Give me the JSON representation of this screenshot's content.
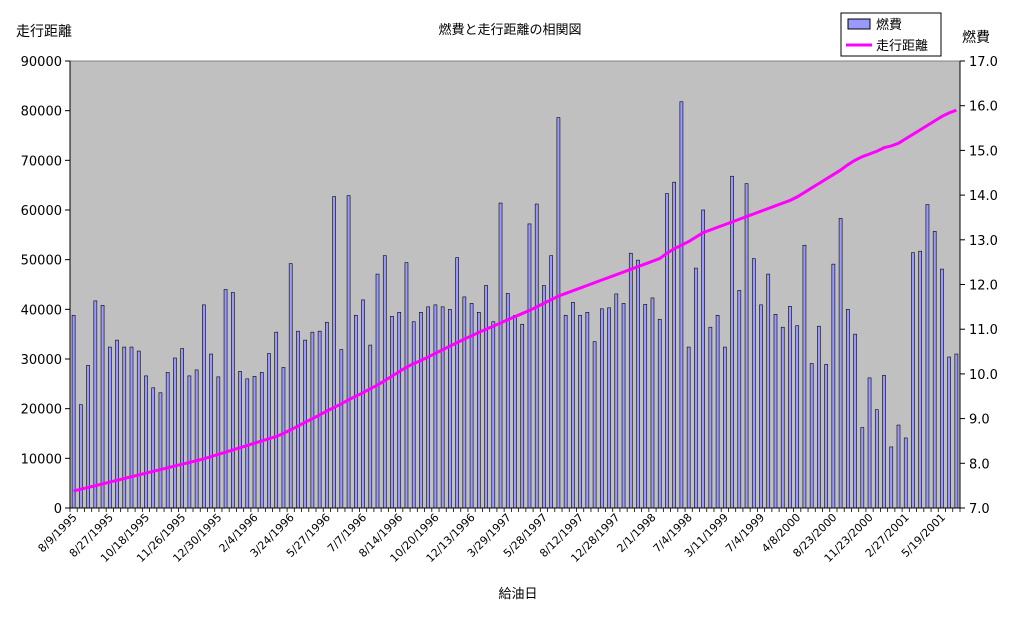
{
  "chart_data": {
    "type": "bar",
    "title": "燃費と走行距離の相関図",
    "xlabel": "給油日",
    "ylabel": "走行距離",
    "y2label": "燃費",
    "ylim": [
      0,
      90000
    ],
    "y2lim": [
      7.0,
      17.0
    ],
    "yticks": [
      "0",
      "10000",
      "20000",
      "30000",
      "40000",
      "50000",
      "60000",
      "70000",
      "80000",
      "90000"
    ],
    "y2ticks": [
      "7.0",
      "8.0",
      "9.0",
      "10.0",
      "11.0",
      "12.0",
      "13.0",
      "14.0",
      "15.0",
      "16.0",
      "17.0"
    ],
    "xtick_labels": [
      "8/9/1995",
      "8/27/1995",
      "10/18/1995",
      "11/26/1995",
      "12/30/1995",
      "2/4/1996",
      "3/24/1996",
      "5/27/1996",
      "7/7/1996",
      "8/14/1996",
      "10/20/1996",
      "12/13/1996",
      "3/29/1997",
      "5/28/1997",
      "8/12/1997",
      "12/28/1997",
      "2/1/1998",
      "7/4/1998",
      "3/11/1999",
      "7/4/1999",
      "4/8/2000",
      "8/23/2000",
      "11/23/2000",
      "2/27/2001",
      "5/19/2001"
    ],
    "grid": false,
    "plot_background": "#c0c0c0",
    "legend_position": "top-right",
    "series": [
      {
        "name": "燃費",
        "kind": "bar",
        "axis": "left",
        "color": "#9999ff",
        "values": [
          38800,
          20800,
          28700,
          41700,
          40800,
          32400,
          33800,
          32400,
          32400,
          31600,
          26600,
          24200,
          23200,
          27300,
          30200,
          32100,
          26600,
          27800,
          40900,
          31000,
          26400,
          44000,
          43400,
          27500,
          26000,
          26500,
          27300,
          31100,
          35400,
          28300,
          49200,
          35600,
          33800,
          35400,
          35600,
          37400,
          62700,
          31900,
          62900,
          38800,
          41900,
          32800,
          47100,
          50800,
          38600,
          39400,
          49400,
          37500,
          39400,
          40500,
          40900,
          40500,
          40000,
          50400,
          42500,
          41200,
          39400,
          44800,
          37500,
          61400,
          43200,
          38800,
          37000,
          57200,
          61200,
          44800,
          50800,
          78600,
          38800,
          41400,
          38800,
          39400,
          33500,
          40100,
          40300,
          43100,
          41200,
          51300,
          49900,
          41000,
          42300,
          38000,
          63300,
          65600,
          81800,
          32400,
          48300,
          60000,
          36400,
          38800,
          32400,
          66800,
          43800,
          65300,
          50200,
          40900,
          47100,
          39000,
          36400,
          40600,
          36700,
          52900,
          29100,
          36600,
          28900,
          49100,
          58300,
          40000,
          35000,
          16200,
          26200,
          19800,
          26700,
          12300,
          16700,
          14100,
          51400,
          51700,
          61100,
          55700,
          48100,
          30400,
          31000
        ]
      },
      {
        "name": "走行距離",
        "kind": "line",
        "axis": "right",
        "color": "#ff00ff",
        "values": [
          7.38,
          7.42,
          7.46,
          7.5,
          7.54,
          7.58,
          7.62,
          7.66,
          7.7,
          7.74,
          7.78,
          7.82,
          7.86,
          7.9,
          7.94,
          7.98,
          8.02,
          8.06,
          8.1,
          8.15,
          8.2,
          8.25,
          8.3,
          8.35,
          8.4,
          8.45,
          8.5,
          8.55,
          8.6,
          8.67,
          8.75,
          8.83,
          8.92,
          9.0,
          9.08,
          9.17,
          9.25,
          9.33,
          9.42,
          9.5,
          9.58,
          9.67,
          9.75,
          9.85,
          9.95,
          10.05,
          10.15,
          10.23,
          10.3,
          10.38,
          10.46,
          10.54,
          10.62,
          10.7,
          10.78,
          10.85,
          10.93,
          11.0,
          11.07,
          11.14,
          11.21,
          11.28,
          11.35,
          11.42,
          11.5,
          11.58,
          11.66,
          11.74,
          11.8,
          11.86,
          11.92,
          11.98,
          12.04,
          12.1,
          12.16,
          12.22,
          12.28,
          12.34,
          12.4,
          12.46,
          12.52,
          12.58,
          12.7,
          12.8,
          12.88,
          12.96,
          13.06,
          13.16,
          13.22,
          13.28,
          13.34,
          13.4,
          13.46,
          13.52,
          13.58,
          13.64,
          13.7,
          13.76,
          13.82,
          13.88,
          13.96,
          14.06,
          14.16,
          14.26,
          14.36,
          14.46,
          14.56,
          14.68,
          14.78,
          14.86,
          14.92,
          14.98,
          15.06,
          15.1,
          15.16,
          15.26,
          15.36,
          15.46,
          15.56,
          15.66,
          15.76,
          15.84,
          15.9
        ]
      }
    ]
  }
}
